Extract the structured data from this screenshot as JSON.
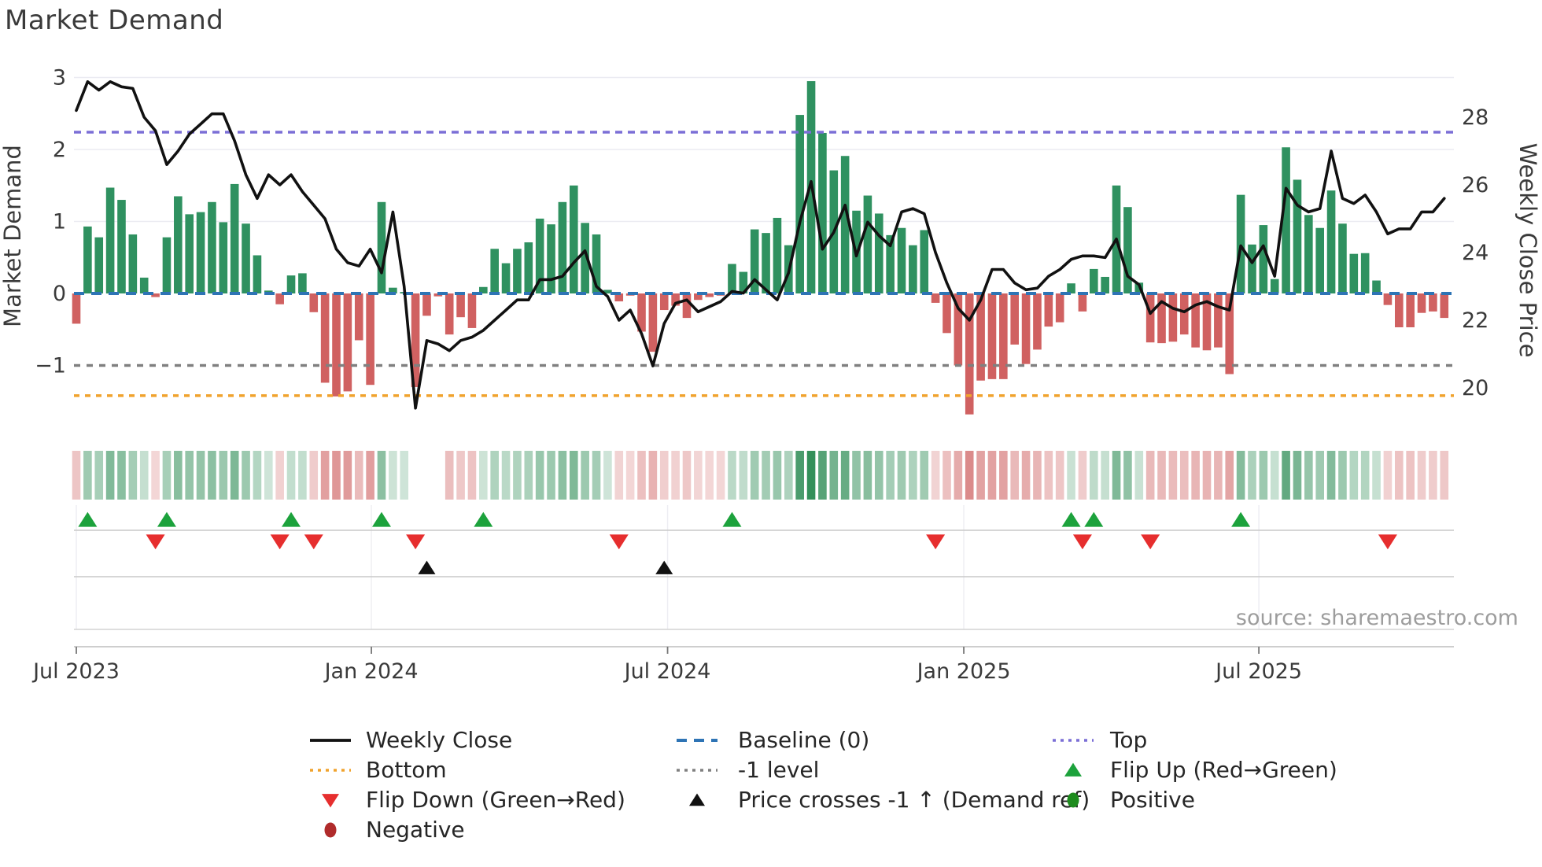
{
  "title": "Market Demand",
  "source": "source: sharemaestro.com",
  "axes": {
    "left_label": "Market Demand",
    "right_label": "Weekly Close Price",
    "left_ticks": [
      "3",
      "2",
      "1",
      "0",
      "−1"
    ],
    "left_tick_values": [
      3,
      2,
      1,
      0,
      -1
    ],
    "right_ticks": [
      "28",
      "26",
      "24",
      "22",
      "20"
    ],
    "right_tick_values": [
      28,
      26,
      24,
      22,
      20
    ],
    "x_ticks": [
      {
        "label": "Jul 2023",
        "week": 0
      },
      {
        "label": "Jan 2024",
        "week": 26.1
      },
      {
        "label": "Jul 2024",
        "week": 52.3
      },
      {
        "label": "Jan 2025",
        "week": 78.5
      },
      {
        "label": "Jul 2025",
        "week": 104.6
      }
    ]
  },
  "colors": {
    "bar_green": "#2f9160",
    "bar_red": "#d06161",
    "price_line": "#111111",
    "baseline": "#2e74b5",
    "top_line": "#7b6fd6",
    "bottom_line": "#f0a32e",
    "minus1_line": "#808080",
    "flip_up": "#1ca23c",
    "flip_down": "#e62e2e",
    "price_cross": "#111111",
    "positive": "#1e8c1e",
    "negative": "#b02b2b",
    "heat_green_rgb": "45,140,85",
    "heat_red_rgb": "201,79,79",
    "grid": "#ebebf2",
    "row_line": "#c9c9c9",
    "tick_text": "#3a3a3a",
    "source_text": "#9d9d9d"
  },
  "chart_data": {
    "type": "bar",
    "subtype": "weekly demand bars + weekly close price line + signal heatmap strip",
    "x_unit": "weeks starting Jul 2023, one bar per week",
    "title": "Market Demand",
    "ylabel_left": "Market Demand",
    "ylabel_right": "Weekly Close Price",
    "demand_axis_range": [
      -1.83,
      3.26
    ],
    "price_axis_range": [
      18.9,
      29.7
    ],
    "ref_levels": {
      "top": 2.24,
      "baseline": 0,
      "minus1": -1,
      "bottom": -1.42
    },
    "demand_bars": [
      -0.42,
      0.93,
      0.78,
      1.47,
      1.3,
      0.82,
      0.22,
      -0.05,
      0.78,
      1.35,
      1.1,
      1.13,
      1.27,
      0.99,
      1.52,
      0.97,
      0.53,
      0.04,
      -0.15,
      0.25,
      0.28,
      -0.26,
      -1.24,
      -1.43,
      -1.36,
      -0.65,
      -1.27,
      1.27,
      0.08,
      0.02,
      -1.3,
      -0.31,
      -0.04,
      -0.57,
      -0.33,
      -0.48,
      0.09,
      0.62,
      0.42,
      0.62,
      0.71,
      1.04,
      0.96,
      1.27,
      1.5,
      0.98,
      0.82,
      0.05,
      -0.11,
      -0.03,
      -0.53,
      -0.81,
      -0.23,
      -0.17,
      -0.34,
      -0.09,
      -0.05,
      -0.03,
      0.41,
      0.3,
      0.89,
      0.84,
      1.05,
      0.67,
      2.48,
      2.95,
      2.23,
      1.71,
      1.91,
      1.15,
      1.36,
      1.11,
      0.81,
      0.91,
      0.67,
      0.88,
      -0.13,
      -0.55,
      -1.0,
      -1.68,
      -1.21,
      -1.19,
      -1.19,
      -0.71,
      -0.98,
      -0.78,
      -0.46,
      -0.4,
      0.14,
      -0.25,
      0.34,
      0.23,
      1.5,
      1.2,
      0.15,
      -0.68,
      -0.69,
      -0.67,
      -0.57,
      -0.75,
      -0.79,
      -0.75,
      -1.12,
      1.37,
      0.68,
      0.95,
      0.2,
      2.03,
      1.58,
      1.09,
      0.91,
      1.43,
      0.97,
      0.55,
      0.56,
      0.18,
      -0.16,
      -0.47,
      -0.47,
      -0.27,
      -0.25,
      -0.34
    ],
    "price_line": [
      28.2,
      29.05,
      28.8,
      29.05,
      28.9,
      28.85,
      28.0,
      27.6,
      26.6,
      27.0,
      27.5,
      27.8,
      28.1,
      28.1,
      27.3,
      26.3,
      25.6,
      26.3,
      26.0,
      26.3,
      25.8,
      25.4,
      25.0,
      24.1,
      23.7,
      23.6,
      24.1,
      23.4,
      25.2,
      23.0,
      19.4,
      21.4,
      21.3,
      21.1,
      21.4,
      21.5,
      21.7,
      22.0,
      22.3,
      22.6,
      22.6,
      23.2,
      23.2,
      23.3,
      23.7,
      24.05,
      23.0,
      22.7,
      22.0,
      22.3,
      21.6,
      20.65,
      21.9,
      22.5,
      22.6,
      22.25,
      22.4,
      22.55,
      22.85,
      22.8,
      23.2,
      22.9,
      22.6,
      23.4,
      24.9,
      26.1,
      24.1,
      24.6,
      25.4,
      23.9,
      24.9,
      24.5,
      24.2,
      25.2,
      25.3,
      25.15,
      24.0,
      23.1,
      22.35,
      22.0,
      22.6,
      23.5,
      23.5,
      23.1,
      22.9,
      22.95,
      23.3,
      23.5,
      23.8,
      23.9,
      23.9,
      23.85,
      24.4,
      23.3,
      23.05,
      22.2,
      22.55,
      22.35,
      22.25,
      22.45,
      22.55,
      22.4,
      22.3,
      24.2,
      23.7,
      24.2,
      23.3,
      25.9,
      25.4,
      25.2,
      25.3,
      27.0,
      25.6,
      25.45,
      25.7,
      25.2,
      24.55,
      24.7,
      24.7,
      25.2,
      25.2,
      25.6
    ],
    "heatmap_gap_weeks": [
      30,
      31,
      32
    ],
    "flip_up_weeks": [
      1,
      8,
      19,
      27,
      36,
      58,
      88,
      90,
      103
    ],
    "flip_down_weeks": [
      7,
      18,
      21,
      30,
      48,
      76,
      89,
      95,
      116
    ],
    "price_cross_up_weeks": [
      31,
      52
    ],
    "legend_position": "below chart, 3 columns"
  },
  "legend": {
    "items": [
      {
        "label": "Weekly Close",
        "swatch": "line-black",
        "col": 0,
        "row": 0
      },
      {
        "label": "Baseline (0)",
        "swatch": "dash-blue",
        "col": 1,
        "row": 0
      },
      {
        "label": "Top",
        "swatch": "dot-purple",
        "col": 2,
        "row": 0
      },
      {
        "label": "Bottom",
        "swatch": "dot-orange",
        "col": 0,
        "row": 1
      },
      {
        "label": "-1 level",
        "swatch": "dot-gray",
        "col": 1,
        "row": 1
      },
      {
        "label": "Flip Up (Red→Green)",
        "swatch": "tri-up-green",
        "col": 2,
        "row": 1
      },
      {
        "label": "Flip Down (Green→Red)",
        "swatch": "tri-down-red",
        "col": 0,
        "row": 2
      },
      {
        "label": "Price crosses -1 ↑ (Demand ref)",
        "swatch": "tri-up-black",
        "col": 1,
        "row": 2
      },
      {
        "label": "Positive",
        "swatch": "circle-green",
        "col": 2,
        "row": 2
      },
      {
        "label": "Negative",
        "swatch": "circle-darkred",
        "col": 0,
        "row": 3
      }
    ]
  }
}
